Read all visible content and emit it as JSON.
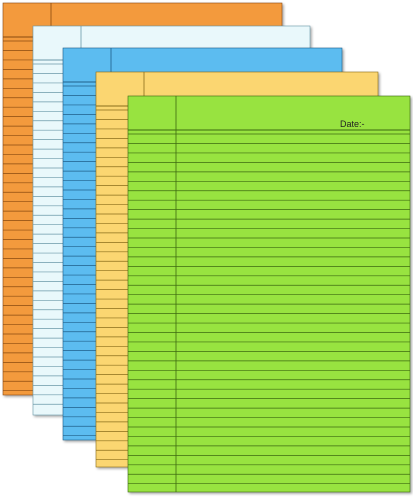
{
  "pad": {
    "date_label": "Date:-"
  }
}
